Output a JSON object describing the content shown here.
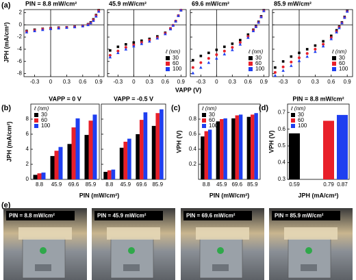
{
  "panel_labels": [
    "(a)",
    "(b)",
    "(c)",
    "(d)",
    "(e)"
  ],
  "chart_data": [
    {
      "type": "scatter",
      "title": "PIN = 8.8 mW/cm²",
      "ylabel": "JPH (mA/cm²)",
      "x": [
        -0.45,
        -0.3,
        -0.15,
        0,
        0.15,
        0.3,
        0.45,
        0.6,
        0.7,
        0.75,
        0.8,
        0.85,
        0.9
      ],
      "series": [
        {
          "color": "#000000",
          "values": [
            -1.0,
            -0.8,
            -0.65,
            -0.55,
            -0.45,
            -0.4,
            -0.3,
            -0.15,
            0.1,
            0.4,
            0.9,
            1.6,
            2.4
          ]
        },
        {
          "color": "#e8202a",
          "values": [
            -1.1,
            -0.9,
            -0.7,
            -0.6,
            -0.5,
            -0.42,
            -0.32,
            -0.2,
            0.05,
            0.3,
            0.8,
            1.5,
            2.3
          ]
        },
        {
          "color": "#1f3ff0",
          "values": [
            -1.2,
            -1.0,
            -0.8,
            -0.65,
            -0.55,
            -0.45,
            -0.35,
            -0.2,
            0,
            0.3,
            0.7,
            1.4,
            2.2
          ]
        }
      ],
      "xlim": [
        -0.5,
        1.0
      ],
      "ylim": [
        -8.5,
        2.5
      ],
      "xticks": [
        -0.3,
        0,
        0.3,
        0.6,
        0.9
      ],
      "yticks": [
        -8,
        -6,
        -4,
        -2,
        0,
        2
      ]
    },
    {
      "type": "scatter",
      "title": "45.9 mW/cm²",
      "xlabel": "VAPP (V)",
      "legend_title": "ℓ (nm)",
      "x": [
        -0.45,
        -0.3,
        -0.15,
        0,
        0.15,
        0.3,
        0.45,
        0.6,
        0.7,
        0.75,
        0.8,
        0.85,
        0.9
      ],
      "series": [
        {
          "name": "30",
          "color": "#000000",
          "values": [
            -4.2,
            -3.6,
            -3.2,
            -2.9,
            -2.6,
            -2.3,
            -1.9,
            -1.3,
            -0.6,
            -0.1,
            0.6,
            1.5,
            2.4
          ]
        },
        {
          "name": "60",
          "color": "#e8202a",
          "values": [
            -5.0,
            -4.3,
            -3.7,
            -3.3,
            -2.9,
            -2.5,
            -2.1,
            -1.4,
            -0.6,
            -0.1,
            0.6,
            1.5,
            2.4
          ]
        },
        {
          "name": "100",
          "color": "#1f3ff0",
          "values": [
            -5.3,
            -4.6,
            -4.0,
            -3.5,
            -3.1,
            -2.7,
            -2.2,
            -1.5,
            -0.7,
            -0.1,
            0.6,
            1.5,
            2.4
          ]
        }
      ],
      "xlim": [
        -0.5,
        1.0
      ],
      "ylim": [
        -8.5,
        2.5
      ],
      "xticks": [
        -0.3,
        0,
        0.3,
        0.6,
        0.9
      ],
      "yticks": [
        -8,
        -6,
        -4,
        -2,
        0,
        2
      ]
    },
    {
      "type": "scatter",
      "title": "69.6 mW/cm²",
      "legend_title": "ℓ (nm)",
      "x": [
        -0.45,
        -0.3,
        -0.15,
        0,
        0.15,
        0.3,
        0.45,
        0.6,
        0.7,
        0.75,
        0.8,
        0.85,
        0.9
      ],
      "series": [
        {
          "name": "30",
          "color": "#000000",
          "values": [
            -5.8,
            -5.1,
            -4.6,
            -4.1,
            -3.6,
            -3.1,
            -2.5,
            -1.6,
            -0.8,
            -0.2,
            0.5,
            1.4,
            2.4
          ]
        },
        {
          "name": "60",
          "color": "#e8202a",
          "values": [
            -7.0,
            -6.2,
            -5.5,
            -4.9,
            -4.3,
            -3.7,
            -2.9,
            -1.9,
            -0.9,
            -0.3,
            0.4,
            1.3,
            2.3
          ]
        },
        {
          "name": "100",
          "color": "#1f3ff0",
          "values": [
            -7.9,
            -7.0,
            -6.2,
            -5.5,
            -4.8,
            -4.1,
            -3.2,
            -2.1,
            -1.0,
            -0.3,
            0.4,
            1.3,
            2.3
          ]
        }
      ],
      "xlim": [
        -0.5,
        1.0
      ],
      "ylim": [
        -8.5,
        2.5
      ],
      "xticks": [
        -0.3,
        0,
        0.3,
        0.6,
        0.9
      ],
      "yticks": [
        -8,
        -6,
        -4,
        -2,
        0,
        2
      ]
    },
    {
      "type": "scatter",
      "title": "85.9 mW/cm²",
      "legend_title": "ℓ (nm)",
      "x": [
        -0.45,
        -0.3,
        -0.15,
        0,
        0.15,
        0.3,
        0.45,
        0.6,
        0.7,
        0.75,
        0.8,
        0.85,
        0.9
      ],
      "series": [
        {
          "name": "30",
          "color": "#000000",
          "values": [
            -7.0,
            -6.0,
            -5.2,
            -4.6,
            -4.0,
            -3.4,
            -2.7,
            -1.8,
            -0.9,
            -0.3,
            0.4,
            1.3,
            2.3
          ]
        },
        {
          "name": "60",
          "color": "#e8202a",
          "values": [
            -7.8,
            -6.9,
            -6.1,
            -5.4,
            -4.7,
            -4.0,
            -3.2,
            -2.1,
            -1.1,
            -0.4,
            0.3,
            1.2,
            2.2
          ]
        },
        {
          "name": "100",
          "color": "#1f3ff0",
          "values": [
            -8.3,
            -7.5,
            -6.7,
            -5.9,
            -5.2,
            -4.4,
            -3.5,
            -2.3,
            -1.2,
            -0.5,
            0.3,
            1.2,
            2.2
          ]
        }
      ],
      "xlim": [
        -0.5,
        1.0
      ],
      "ylim": [
        -8.5,
        2.5
      ],
      "xticks": [
        -0.3,
        0,
        0.3,
        0.6,
        0.9
      ],
      "yticks": [
        -8,
        -6,
        -4,
        -2,
        0,
        2
      ]
    },
    {
      "type": "bar",
      "title": "VAPP = 0 V",
      "ylabel": "JPH (mA/cm²)",
      "xlabel": "PIN (mW/cm²)",
      "legend_title": "ℓ (nm)",
      "categories": [
        "8.8",
        "45.9",
        "69.6",
        "85.9"
      ],
      "series": [
        {
          "name": "30",
          "color": "#000000",
          "values": [
            0.6,
            3.1,
            4.7,
            5.9
          ]
        },
        {
          "name": "60",
          "color": "#e8202a",
          "values": [
            0.8,
            3.8,
            6.9,
            7.8
          ]
        },
        {
          "name": "100",
          "color": "#1f3ff0",
          "values": [
            0.9,
            4.3,
            8.1,
            8.6
          ]
        }
      ],
      "ylim": [
        0,
        10
      ],
      "yticks": [
        0,
        2,
        4,
        6,
        8
      ]
    },
    {
      "type": "bar",
      "title": "VAPP = -0.5 V",
      "categories": [
        "8.8",
        "45.9",
        "69.6",
        "85.9"
      ],
      "series": [
        {
          "color": "#000000",
          "values": [
            1.0,
            4.2,
            6.0,
            7.1
          ]
        },
        {
          "color": "#e8202a",
          "values": [
            1.2,
            5.0,
            7.9,
            8.8
          ]
        },
        {
          "color": "#1f3ff0",
          "values": [
            1.3,
            5.4,
            8.9,
            9.3
          ]
        }
      ],
      "ylim": [
        0,
        10
      ],
      "yticks": [
        0,
        2,
        4,
        6,
        8
      ]
    },
    {
      "type": "bar",
      "ylabel": "VPH (V)",
      "xlabel": "PIN (mW/cm²)",
      "legend_title": "ℓ (nm)",
      "categories": [
        "8.8",
        "45.9",
        "69.6",
        "85.9"
      ],
      "series": [
        {
          "name": "30",
          "color": "#000000",
          "values": [
            0.57,
            0.77,
            0.81,
            0.83
          ]
        },
        {
          "name": "60",
          "color": "#e8202a",
          "values": [
            0.64,
            0.8,
            0.85,
            0.86
          ]
        },
        {
          "name": "100",
          "color": "#1f3ff0",
          "values": [
            0.66,
            0.81,
            0.86,
            0.88
          ]
        }
      ],
      "ylim": [
        0,
        1.0
      ],
      "yticks": [
        0.2,
        0.4,
        0.6,
        0.8
      ]
    },
    {
      "type": "bar",
      "title": "PIN = 8.8 mW/cm²",
      "ylabel": "VPH (V)",
      "xlabel": "JPH (mA/cm²)",
      "legend_title": "ℓ (nm)",
      "series": [
        {
          "name": "30",
          "color": "#000000",
          "x": [
            0.59
          ],
          "values": [
            0.575
          ]
        },
        {
          "name": "60",
          "color": "#e8202a",
          "x": [
            0.79
          ],
          "values": [
            0.65
          ]
        },
        {
          "name": "100",
          "color": "#1f3ff0",
          "x": [
            0.87
          ],
          "values": [
            0.685
          ]
        }
      ],
      "xlim": [
        0.55,
        0.91
      ],
      "ylim": [
        0.3,
        0.75
      ],
      "xticks": [
        0.59,
        0.79,
        0.87
      ],
      "yticks": [
        0.3,
        0.4,
        0.5,
        0.6,
        0.7
      ]
    }
  ],
  "photos": [
    {
      "label": "PIN = 8.8 mW/cm²"
    },
    {
      "label": "PIN = 45.9 mW/cm²"
    },
    {
      "label": "PIN = 69.6 mW/cm²"
    },
    {
      "label": "PIN = 85.9 mW/cm²"
    }
  ]
}
